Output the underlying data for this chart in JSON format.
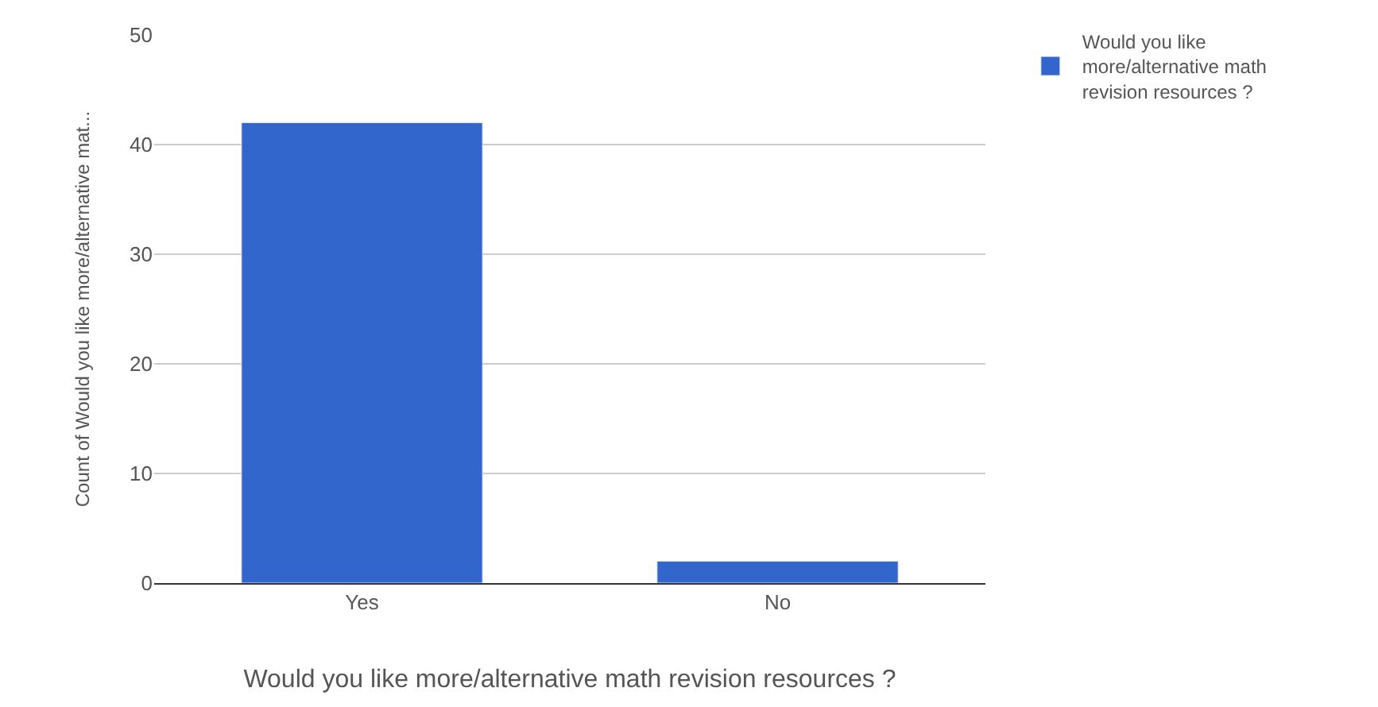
{
  "chart_data": {
    "type": "bar",
    "categories": [
      "Yes",
      "No"
    ],
    "series": [
      {
        "name": "Would you like more/alternative math revision resources ?",
        "color": "#3366cc",
        "values": [
          42,
          2
        ]
      }
    ],
    "xlabel": "Would you like more/alternative math revision resources ?",
    "ylabel": "Count of Would you like more/alternative mat...",
    "ylim": [
      0,
      50
    ],
    "yticks": [
      0,
      10,
      20,
      30,
      40,
      50
    ],
    "grid": "y",
    "legend": "top right"
  }
}
